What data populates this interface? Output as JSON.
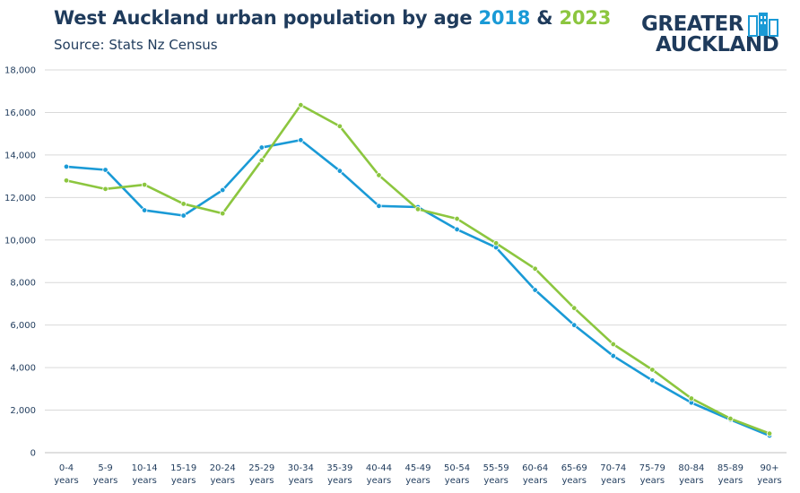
{
  "header": {
    "title_prefix": "West Auckland urban population by age ",
    "title_year1": "2018",
    "title_amp": " & ",
    "title_year2": "2023",
    "subtitle": "Source: Stats Nz Census"
  },
  "logo": {
    "line1": "GREATER",
    "line2": "AUCKLAND",
    "icon": "city-skyline-icon"
  },
  "colors": {
    "series_2018": "#1a9ad6",
    "series_2023": "#8cc63f",
    "title": "#1f3b5c",
    "grid": "#d9d9d9"
  },
  "chart_data": {
    "type": "line",
    "title": "West Auckland urban population by age 2018 & 2023",
    "subtitle": "Source: Stats Nz Census",
    "xlabel": "",
    "ylabel": "",
    "ylim": [
      0,
      18000
    ],
    "yticks": [
      0,
      2000,
      4000,
      6000,
      8000,
      10000,
      12000,
      14000,
      16000,
      18000
    ],
    "ytick_labels": [
      "0",
      "2,000",
      "4,000",
      "6,000",
      "8,000",
      "10,000",
      "12,000",
      "14,000",
      "16,000",
      "18,000"
    ],
    "grid": true,
    "legend": "none",
    "categories": [
      [
        "0-4",
        "years"
      ],
      [
        "5-9",
        "years"
      ],
      [
        "10-14",
        "years"
      ],
      [
        "15-19",
        "years"
      ],
      [
        "20-24",
        "years"
      ],
      [
        "25-29",
        "years"
      ],
      [
        "30-34",
        "years"
      ],
      [
        "35-39",
        "years"
      ],
      [
        "40-44",
        "years"
      ],
      [
        "45-49",
        "years"
      ],
      [
        "50-54",
        "years"
      ],
      [
        "55-59",
        "years"
      ],
      [
        "60-64",
        "years"
      ],
      [
        "65-69",
        "years"
      ],
      [
        "70-74",
        "years"
      ],
      [
        "75-79",
        "years"
      ],
      [
        "80-84",
        "years"
      ],
      [
        "85-89",
        "years"
      ],
      [
        "90+",
        "years"
      ]
    ],
    "series": [
      {
        "name": "2018",
        "color": "#1a9ad6",
        "values": [
          13450,
          13300,
          11400,
          11150,
          12350,
          14350,
          14700,
          13250,
          11600,
          11550,
          10500,
          9650,
          7650,
          6000,
          4550,
          3400,
          2350,
          1550,
          800
        ]
      },
      {
        "name": "2023",
        "color": "#8cc63f",
        "values": [
          12800,
          12400,
          12600,
          11700,
          11250,
          13750,
          16350,
          15350,
          13050,
          11450,
          11000,
          9850,
          8650,
          6800,
          5100,
          3900,
          2550,
          1600,
          900
        ]
      }
    ]
  }
}
